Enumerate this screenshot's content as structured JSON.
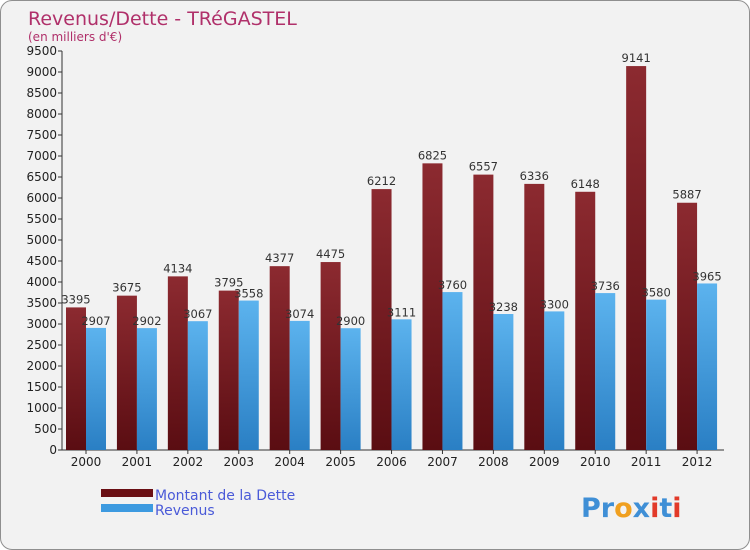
{
  "chart_data": {
    "type": "bar",
    "title": "Revenus/Dette - TRéGASTEL",
    "subtitle": "(en milliers d'€)",
    "categories": [
      "2000",
      "2001",
      "2002",
      "2003",
      "2004",
      "2005",
      "2006",
      "2007",
      "2008",
      "2009",
      "2010",
      "2011",
      "2012"
    ],
    "series": [
      {
        "name": "Montant de la Dette",
        "color": "#7a1a1f",
        "values": [
          3395,
          3675,
          4134,
          3795,
          4377,
          4475,
          6212,
          6825,
          6557,
          6336,
          6148,
          9141,
          5887
        ]
      },
      {
        "name": "Revenus",
        "color": "#4aa6e6",
        "values": [
          2907,
          2902,
          3067,
          3558,
          3074,
          2900,
          3111,
          3760,
          3238,
          3300,
          3736,
          3580,
          3965
        ]
      }
    ],
    "ylim": [
      0,
      9500
    ],
    "yticks": [
      0,
      500,
      1000,
      1500,
      2000,
      2500,
      3000,
      3500,
      4000,
      4500,
      5000,
      5500,
      6000,
      6500,
      7000,
      7500,
      8000,
      8500,
      9000,
      9500
    ],
    "grid": false,
    "legend": "bottom-left"
  },
  "brand": {
    "prefix": "Pr",
    "o": "o",
    "x": "x",
    "i1": "i",
    "t": "t",
    "i2": "i"
  }
}
